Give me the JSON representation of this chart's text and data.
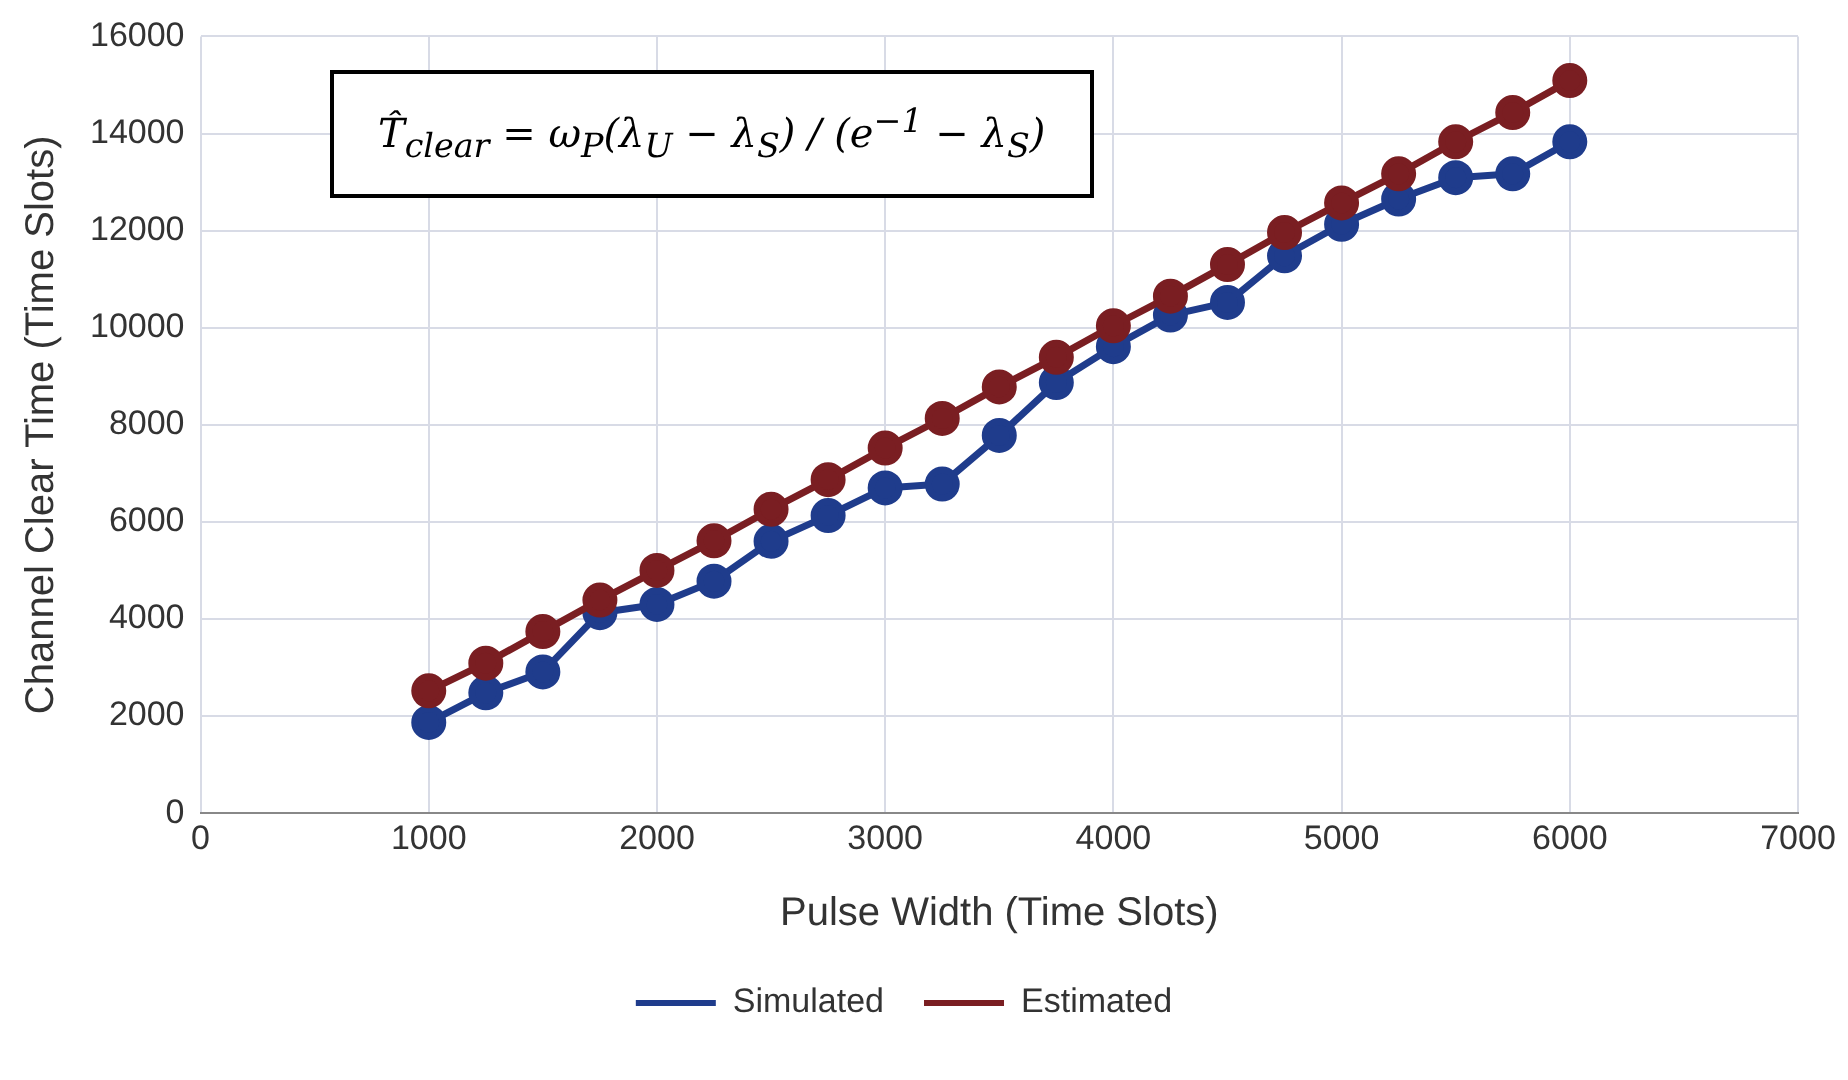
{
  "chart_data": {
    "type": "line",
    "xlabel": "Pulse Width (Time Slots)",
    "ylabel": "Channel Clear Time (Time Slots)",
    "x": [
      1000,
      1250,
      1500,
      1750,
      2000,
      2250,
      2500,
      2750,
      3000,
      3250,
      3500,
      3750,
      4000,
      4250,
      4500,
      4750,
      5000,
      5250,
      5500,
      5750,
      6000
    ],
    "series": [
      {
        "name": "Simulated",
        "color": "#1f3c8c",
        "values": [
          1870,
          2480,
          2910,
          4130,
          4300,
          4780,
          5600,
          6130,
          6700,
          6780,
          7780,
          8870,
          9610,
          10260,
          10520,
          11480,
          12130,
          12650,
          13090,
          13170,
          13830
        ]
      },
      {
        "name": "Estimated",
        "color": "#7a1e22",
        "values": [
          2520,
          3090,
          3740,
          4390,
          5000,
          5610,
          6260,
          6870,
          7520,
          8130,
          8780,
          9390,
          10040,
          10650,
          11300,
          11960,
          12570,
          13170,
          13830,
          14430,
          15090
        ]
      }
    ],
    "xlim": [
      0,
      7000
    ],
    "xticks": [
      0,
      1000,
      2000,
      3000,
      4000,
      5000,
      6000,
      7000
    ],
    "ylim": [
      0,
      16000
    ],
    "yticks": [
      0,
      2000,
      4000,
      6000,
      8000,
      10000,
      12000,
      14000,
      16000
    ],
    "grid": true,
    "legend": "bottom",
    "marker": "circle",
    "line_style": "solid",
    "annotations": [
      "T̂$_{clear}$ = ω$_{P}$(λ$_{U}$ − λ$_{S}$) / (e$^{−1}$ − λ$_{S}$)"
    ]
  }
}
